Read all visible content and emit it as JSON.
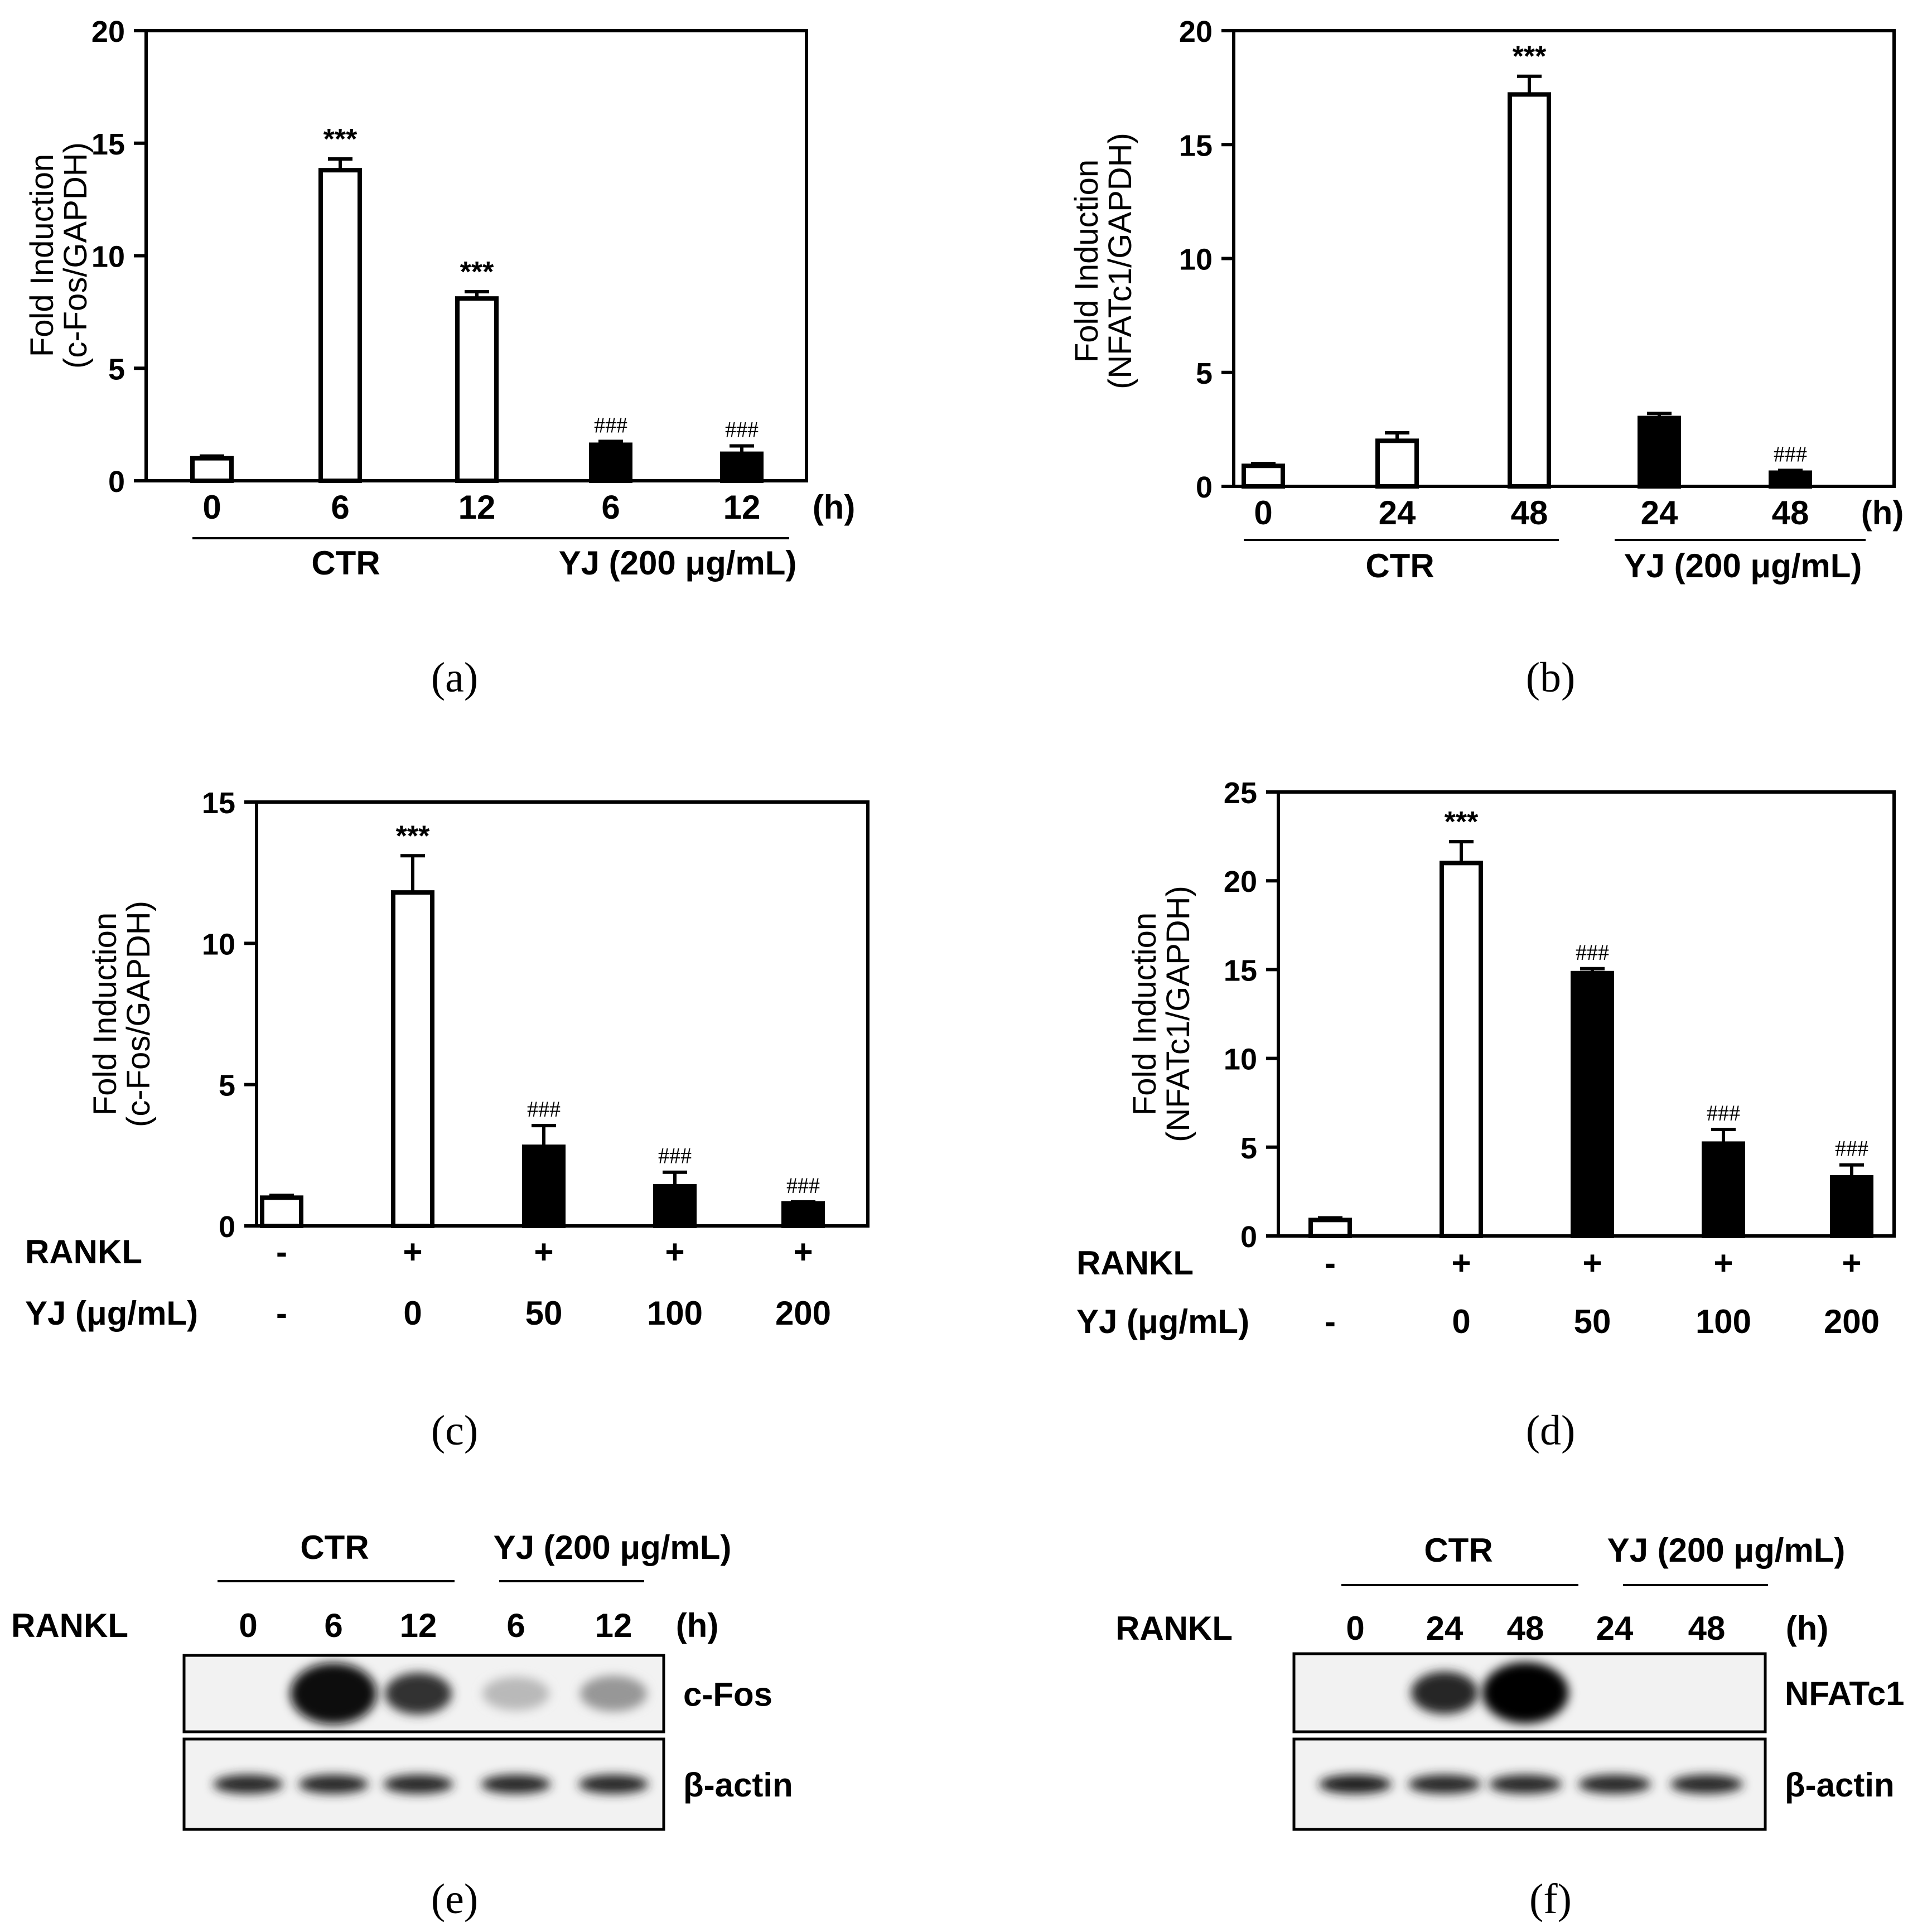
{
  "chart_data": [
    {
      "panel": "(a)",
      "type": "bar",
      "ylabel": [
        "Fold Induction",
        "(c-Fos/GAPDH)"
      ],
      "ylim": [
        0,
        20
      ],
      "yticks": [
        "0",
        "5",
        "10",
        "15",
        "20"
      ],
      "categories": [
        "0",
        "6",
        "12",
        "6",
        "12"
      ],
      "unit": "(h)",
      "groups": [
        {
          "label": "CTR",
          "from": 0,
          "to": 2
        },
        {
          "label": "YJ (200 μg/mL)",
          "from": 3,
          "to": 4
        }
      ],
      "values": [
        1.0,
        13.8,
        8.1,
        1.6,
        1.2
      ],
      "errors": [
        0.1,
        0.5,
        0.3,
        0.15,
        0.35
      ],
      "fill": [
        "white",
        "white",
        "white",
        "black",
        "black"
      ],
      "marks": [
        "",
        "***",
        "***",
        "###",
        "###"
      ]
    },
    {
      "panel": "(b)",
      "type": "bar",
      "ylabel": [
        "Fold Induction",
        "(NFATc1/GAPDH)"
      ],
      "ylim": [
        0,
        20
      ],
      "yticks": [
        "0",
        "5",
        "10",
        "15",
        "20"
      ],
      "categories": [
        "0",
        "24",
        "48",
        "24",
        "48"
      ],
      "unit": "(h)",
      "groups": [
        {
          "label": "CTR",
          "from": 0,
          "to": 2
        },
        {
          "label": "YJ (200 μg/mL)",
          "from": 3,
          "to": 4
        }
      ],
      "values": [
        0.9,
        2.0,
        17.2,
        3.0,
        0.6
      ],
      "errors": [
        0.1,
        0.35,
        0.8,
        0.2,
        0.1
      ],
      "fill": [
        "white",
        "white",
        "white",
        "black",
        "black"
      ],
      "marks": [
        "",
        "",
        "***",
        "",
        "###"
      ]
    },
    {
      "panel": "(c)",
      "type": "bar",
      "ylabel": [
        "Fold Induction",
        "(c-Fos/GAPDH)"
      ],
      "ylim": [
        0,
        15
      ],
      "yticks": [
        "0",
        "5",
        "10",
        "15"
      ],
      "categories": [
        "-",
        "+",
        "+",
        "+",
        "+"
      ],
      "row_labels": [
        "RANKL",
        "YJ (μg/mL)"
      ],
      "rows": [
        [
          "-",
          "+",
          "+",
          "+",
          "+"
        ],
        [
          "-",
          "0",
          "50",
          "100",
          "200"
        ]
      ],
      "values": [
        1.0,
        11.8,
        2.8,
        1.4,
        0.8
      ],
      "errors": [
        0.08,
        1.3,
        0.75,
        0.5,
        0.05
      ],
      "fill": [
        "white",
        "white",
        "black",
        "black",
        "black"
      ],
      "marks": [
        "",
        "***",
        "###",
        "###",
        "###"
      ]
    },
    {
      "panel": "(d)",
      "type": "bar",
      "ylabel": [
        "Fold Induction",
        "(NFATc1/GAPDH)"
      ],
      "ylim": [
        0,
        25
      ],
      "yticks": [
        "0",
        "5",
        "10",
        "15",
        "20",
        "25"
      ],
      "categories": [
        "-",
        "+",
        "+",
        "+",
        "+"
      ],
      "row_labels": [
        "RANKL",
        "YJ (μg/mL)"
      ],
      "rows": [
        [
          "-",
          "+",
          "+",
          "+",
          "+"
        ],
        [
          "-",
          "0",
          "50",
          "100",
          "200"
        ]
      ],
      "values": [
        0.9,
        21.0,
        14.8,
        5.2,
        3.3
      ],
      "errors": [
        0.12,
        1.2,
        0.25,
        0.8,
        0.7
      ],
      "fill": [
        "white",
        "white",
        "black",
        "black",
        "black"
      ],
      "marks": [
        "",
        "***",
        "###",
        "###",
        "###"
      ]
    }
  ],
  "blots": [
    {
      "panel": "(e)",
      "groups": [
        {
          "label": "CTR"
        },
        {
          "label": "YJ (200 μg/mL)"
        }
      ],
      "row_label": "RANKL",
      "lanes": [
        "0",
        "6",
        "12",
        "6",
        "12"
      ],
      "unit": "(h)",
      "bands": [
        {
          "label": "c-Fos",
          "intensity": [
            0.0,
            0.95,
            0.8,
            0.2,
            0.35
          ]
        },
        {
          "label": "β-actin",
          "intensity": [
            0.85,
            0.85,
            0.85,
            0.85,
            0.85
          ]
        }
      ]
    },
    {
      "panel": "(f)",
      "groups": [
        {
          "label": "CTR"
        },
        {
          "label": "YJ (200 μg/mL)"
        }
      ],
      "row_label": "RANKL",
      "lanes": [
        "0",
        "24",
        "48",
        "24",
        "48"
      ],
      "unit": "(h)",
      "bands": [
        {
          "label": "NFATc1",
          "intensity": [
            0.0,
            0.85,
            1.0,
            0.0,
            0.0
          ]
        },
        {
          "label": "β-actin",
          "intensity": [
            0.9,
            0.85,
            0.85,
            0.85,
            0.85
          ]
        }
      ]
    }
  ],
  "captions": [
    "(a)",
    "(b)",
    "(c)",
    "(d)",
    "(e)",
    "(f)"
  ]
}
